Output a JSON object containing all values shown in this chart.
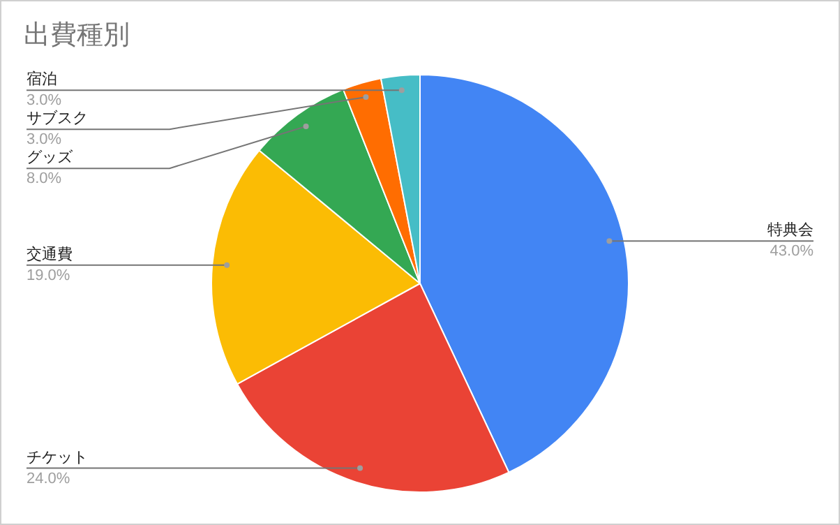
{
  "chart_data": {
    "type": "pie",
    "title": "出費種別",
    "categories": [
      "特典会",
      "チケット",
      "交通費",
      "グッズ",
      "サブスク",
      "宿泊"
    ],
    "values": [
      43,
      24,
      19,
      8,
      3,
      3
    ],
    "value_labels": [
      "43.0%",
      "24.0%",
      "19.0%",
      "8.0%",
      "3.0%",
      "3.0%"
    ],
    "colors": [
      "#4285f4",
      "#ea4335",
      "#fbbc04",
      "#34a853",
      "#ff6d01",
      "#46bdc6"
    ],
    "legend": false
  }
}
